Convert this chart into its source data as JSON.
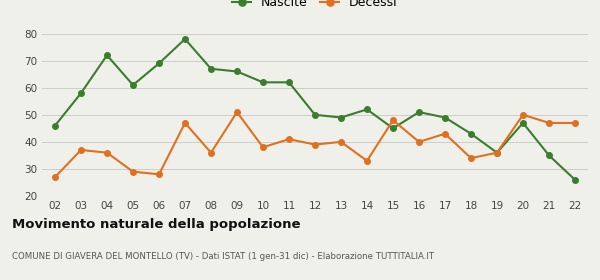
{
  "years": [
    "02",
    "03",
    "04",
    "05",
    "06",
    "07",
    "08",
    "09",
    "10",
    "11",
    "12",
    "13",
    "14",
    "15",
    "16",
    "17",
    "18",
    "19",
    "20",
    "21",
    "22"
  ],
  "nascite": [
    46,
    58,
    72,
    61,
    69,
    78,
    67,
    66,
    62,
    62,
    50,
    49,
    52,
    45,
    51,
    49,
    43,
    36,
    47,
    35,
    26
  ],
  "decessi": [
    27,
    37,
    36,
    29,
    28,
    47,
    36,
    51,
    38,
    41,
    39,
    40,
    33,
    48,
    40,
    43,
    34,
    36,
    50,
    47,
    47
  ],
  "nascite_color": "#3a7d2c",
  "decessi_color": "#e07020",
  "background_color": "#f0f0eb",
  "grid_color": "#cccccc",
  "ylim": [
    20,
    80
  ],
  "yticks": [
    20,
    30,
    40,
    50,
    60,
    70,
    80
  ],
  "title": "Movimento naturale della popolazione",
  "subtitle": "COMUNE DI GIAVERA DEL MONTELLO (TV) - Dati ISTAT (1 gen-31 dic) - Elaborazione TUTTITALIA.IT",
  "legend_nascite": "Nascite",
  "legend_decessi": "Decessi",
  "marker_size": 4,
  "line_width": 1.5
}
